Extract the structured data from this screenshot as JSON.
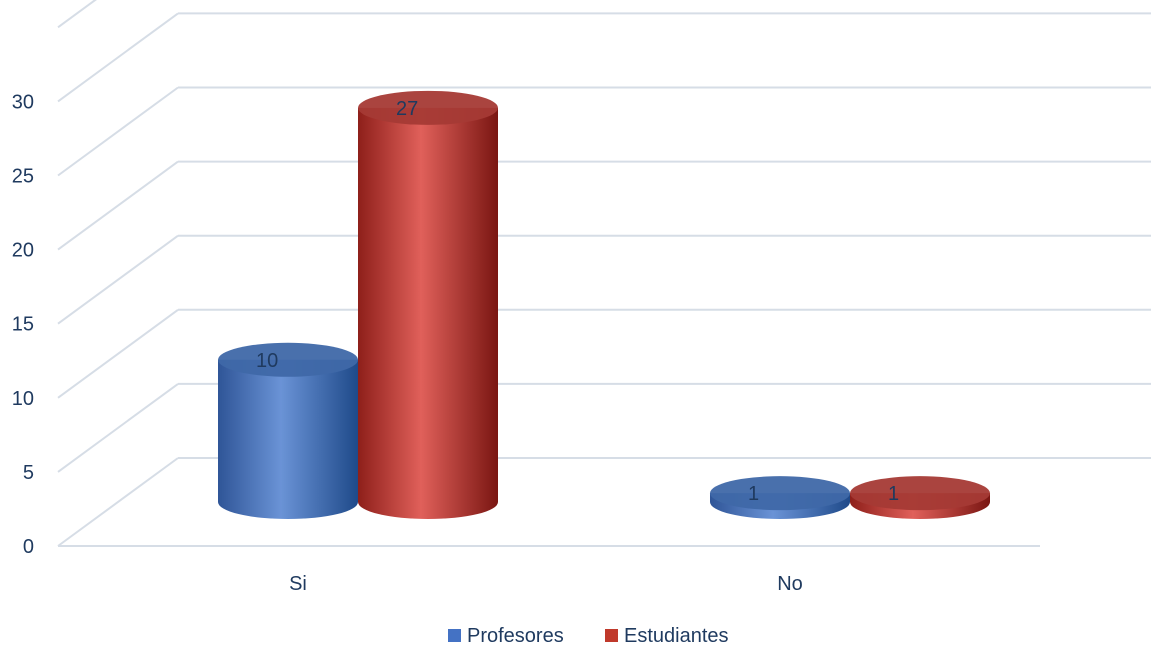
{
  "chart_data": {
    "type": "bar",
    "style": "3d-cylinder",
    "categories": [
      "Si",
      "No"
    ],
    "series": [
      {
        "name": "Profesores",
        "values": [
          10,
          1
        ],
        "color": "#4472c4"
      },
      {
        "name": "Estudiantes",
        "values": [
          27,
          1
        ],
        "color": "#c0392b"
      }
    ],
    "yticks": [
      0,
      5,
      10,
      15,
      20,
      25,
      30
    ],
    "ylim": [
      0,
      35
    ],
    "grid": true,
    "legend": "bottom",
    "data_labels": true
  }
}
